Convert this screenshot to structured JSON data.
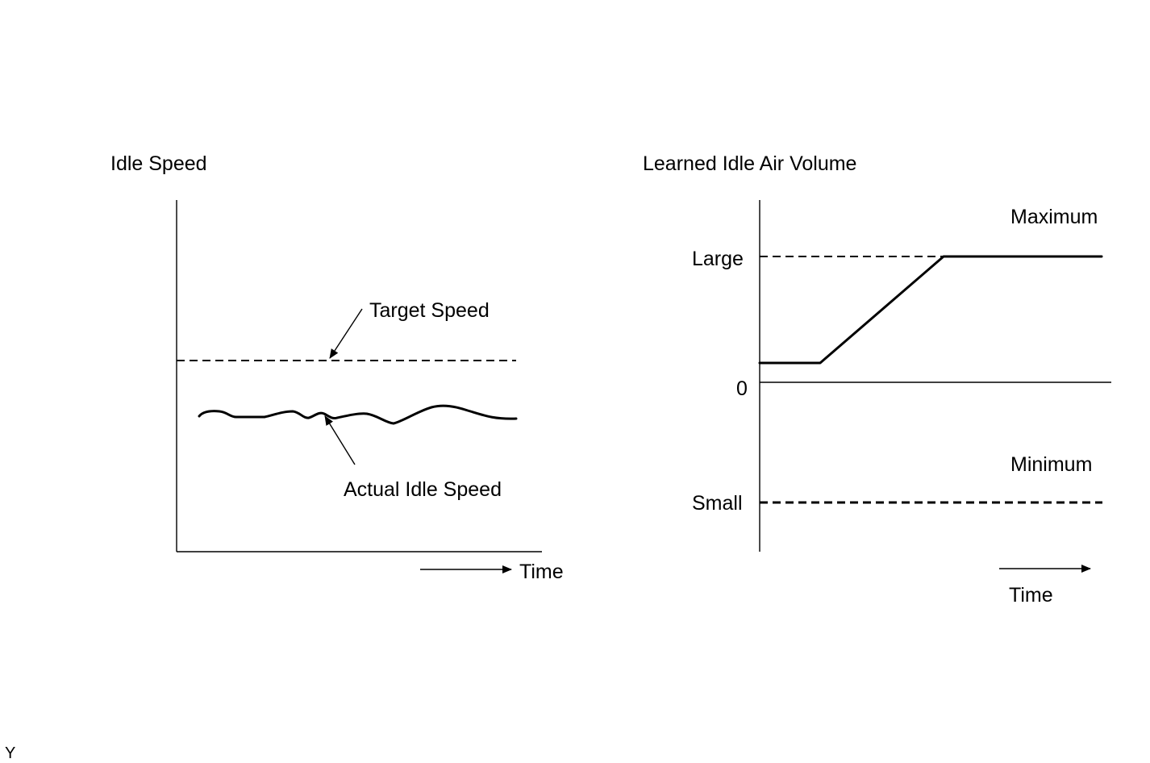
{
  "left_panel": {
    "title": "Idle Speed",
    "target_label": "Target Speed",
    "actual_label": "Actual Idle Speed",
    "time_label": "Time"
  },
  "right_panel": {
    "title": "Learned Idle Air Volume",
    "maximum_label": "Maximum",
    "large_label": "Large",
    "zero_label": "0",
    "minimum_label": "Minimum",
    "small_label": "Small",
    "time_label": "Time"
  },
  "corner_mark": "Y",
  "colors": {
    "ink": "#000000",
    "background": "#ffffff"
  }
}
